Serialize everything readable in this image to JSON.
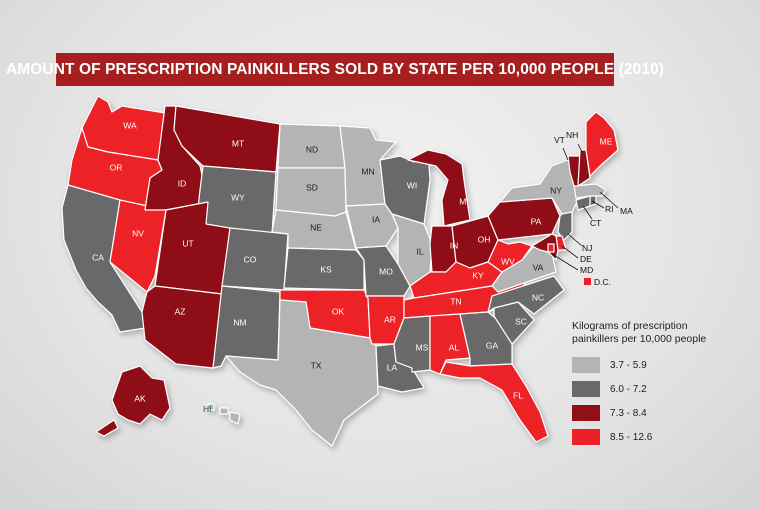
{
  "title": "AMOUNT OF PRESCRIPTION PAINKILLERS SOLD BY STATE PER 10,000 PEOPLE (2010)",
  "colors": {
    "c1": "#b4b4b4",
    "c2": "#696969",
    "c3": "#8f1016",
    "c4": "#ec2128"
  },
  "legend": {
    "title_line1": "Kilograms of prescription",
    "title_line2": "painkillers per 10,000 people",
    "items": [
      {
        "range": "3.7 - 5.9",
        "color": "#b4b4b4"
      },
      {
        "range": "6.0 - 7.2",
        "color": "#696969"
      },
      {
        "range": "7.3 - 8.4",
        "color": "#8f1016"
      },
      {
        "range": "8.5 - 12.6",
        "color": "#ec2128"
      }
    ]
  },
  "states": [
    {
      "abbr": "WA",
      "cls": "c4"
    },
    {
      "abbr": "OR",
      "cls": "c4"
    },
    {
      "abbr": "CA",
      "cls": "c2"
    },
    {
      "abbr": "NV",
      "cls": "c4"
    },
    {
      "abbr": "ID",
      "cls": "c3"
    },
    {
      "abbr": "MT",
      "cls": "c3"
    },
    {
      "abbr": "WY",
      "cls": "c2"
    },
    {
      "abbr": "UT",
      "cls": "c3"
    },
    {
      "abbr": "AZ",
      "cls": "c3"
    },
    {
      "abbr": "CO",
      "cls": "c2"
    },
    {
      "abbr": "NM",
      "cls": "c2"
    },
    {
      "abbr": "ND",
      "cls": "c1"
    },
    {
      "abbr": "SD",
      "cls": "c1"
    },
    {
      "abbr": "NE",
      "cls": "c1"
    },
    {
      "abbr": "KS",
      "cls": "c2"
    },
    {
      "abbr": "OK",
      "cls": "c4"
    },
    {
      "abbr": "TX",
      "cls": "c1"
    },
    {
      "abbr": "MN",
      "cls": "c1"
    },
    {
      "abbr": "IA",
      "cls": "c1"
    },
    {
      "abbr": "MO",
      "cls": "c2"
    },
    {
      "abbr": "AR",
      "cls": "c4"
    },
    {
      "abbr": "LA",
      "cls": "c2"
    },
    {
      "abbr": "WI",
      "cls": "c2"
    },
    {
      "abbr": "IL",
      "cls": "c1"
    },
    {
      "abbr": "MI",
      "cls": "c3"
    },
    {
      "abbr": "IN",
      "cls": "c3"
    },
    {
      "abbr": "OH",
      "cls": "c3"
    },
    {
      "abbr": "KY",
      "cls": "c4"
    },
    {
      "abbr": "TN",
      "cls": "c4"
    },
    {
      "abbr": "MS",
      "cls": "c2"
    },
    {
      "abbr": "AL",
      "cls": "c4"
    },
    {
      "abbr": "GA",
      "cls": "c2"
    },
    {
      "abbr": "FL",
      "cls": "c4"
    },
    {
      "abbr": "SC",
      "cls": "c2"
    },
    {
      "abbr": "NC",
      "cls": "c2"
    },
    {
      "abbr": "VA",
      "cls": "c1"
    },
    {
      "abbr": "WV",
      "cls": "c4"
    },
    {
      "abbr": "PA",
      "cls": "c3"
    },
    {
      "abbr": "NY",
      "cls": "c1"
    },
    {
      "abbr": "NJ",
      "cls": "c2"
    },
    {
      "abbr": "DE",
      "cls": "c4"
    },
    {
      "abbr": "MD",
      "cls": "c3"
    },
    {
      "abbr": "D.C.",
      "cls": "c4"
    },
    {
      "abbr": "CT",
      "cls": "c2"
    },
    {
      "abbr": "RI",
      "cls": "c2"
    },
    {
      "abbr": "MA",
      "cls": "c1"
    },
    {
      "abbr": "VT",
      "cls": "c3"
    },
    {
      "abbr": "NH",
      "cls": "c3"
    },
    {
      "abbr": "ME",
      "cls": "c4"
    },
    {
      "abbr": "AK",
      "cls": "c3"
    },
    {
      "abbr": "HI",
      "cls": "c1"
    }
  ]
}
